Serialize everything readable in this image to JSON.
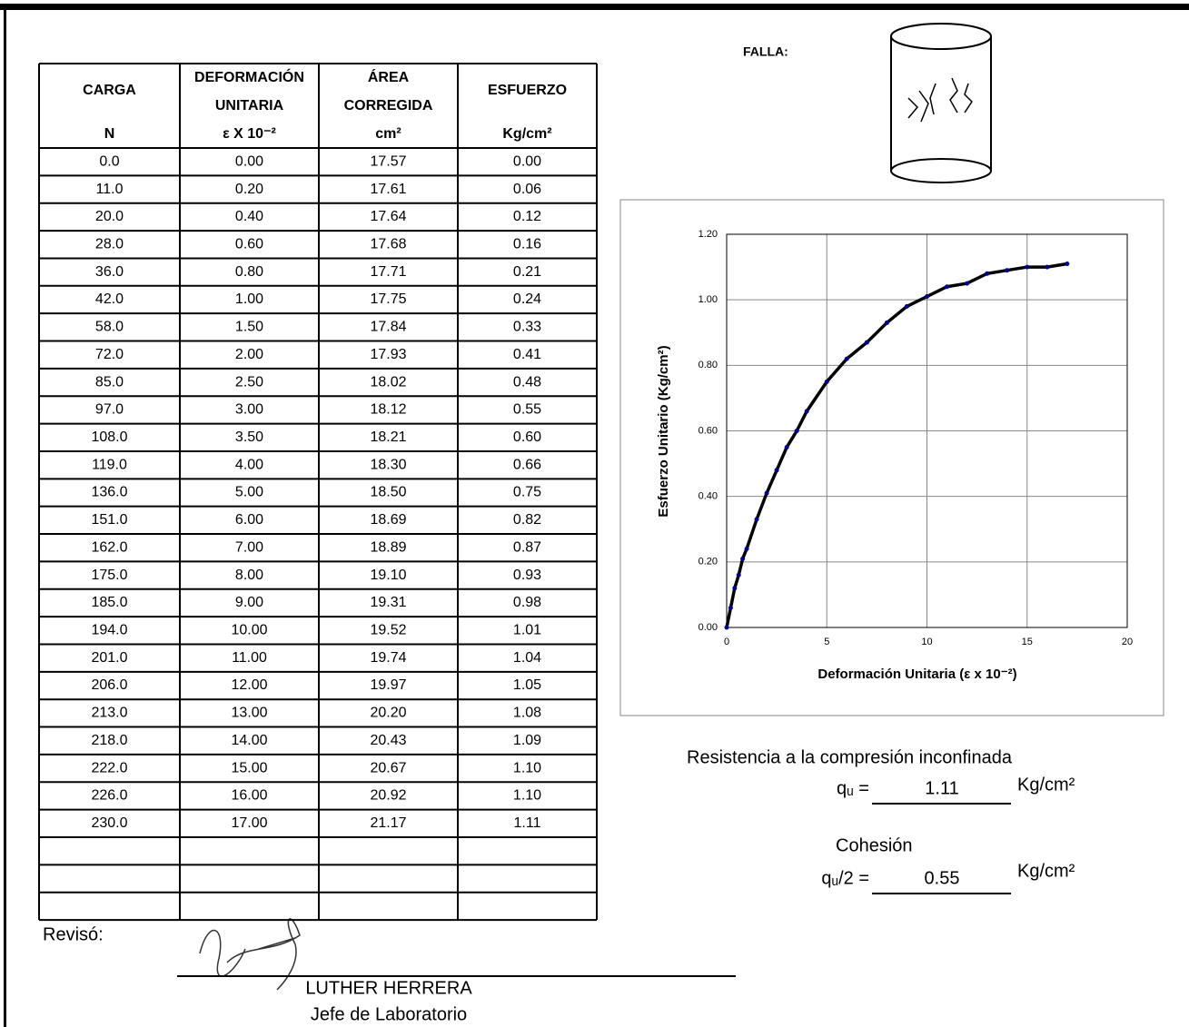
{
  "table": {
    "headers": [
      {
        "lines": [
          "CARGA"
        ],
        "unit": "N"
      },
      {
        "lines": [
          "DEFORMACIÓN",
          "UNITARIA"
        ],
        "unit": "ε X 10⁻²"
      },
      {
        "lines": [
          "ÁREA",
          "CORREGIDA"
        ],
        "unit": "cm²"
      },
      {
        "lines": [
          "ESFUERZO"
        ],
        "unit": "Kg/cm²"
      }
    ],
    "rows": [
      [
        "0.0",
        "0.00",
        "17.57",
        "0.00"
      ],
      [
        "11.0",
        "0.20",
        "17.61",
        "0.06"
      ],
      [
        "20.0",
        "0.40",
        "17.64",
        "0.12"
      ],
      [
        "28.0",
        "0.60",
        "17.68",
        "0.16"
      ],
      [
        "36.0",
        "0.80",
        "17.71",
        "0.21"
      ],
      [
        "42.0",
        "1.00",
        "17.75",
        "0.24"
      ],
      [
        "58.0",
        "1.50",
        "17.84",
        "0.33"
      ],
      [
        "72.0",
        "2.00",
        "17.93",
        "0.41"
      ],
      [
        "85.0",
        "2.50",
        "18.02",
        "0.48"
      ],
      [
        "97.0",
        "3.00",
        "18.12",
        "0.55"
      ],
      [
        "108.0",
        "3.50",
        "18.21",
        "0.60"
      ],
      [
        "119.0",
        "4.00",
        "18.30",
        "0.66"
      ],
      [
        "136.0",
        "5.00",
        "18.50",
        "0.75"
      ],
      [
        "151.0",
        "6.00",
        "18.69",
        "0.82"
      ],
      [
        "162.0",
        "7.00",
        "18.89",
        "0.87"
      ],
      [
        "175.0",
        "8.00",
        "19.10",
        "0.93"
      ],
      [
        "185.0",
        "9.00",
        "19.31",
        "0.98"
      ],
      [
        "194.0",
        "10.00",
        "19.52",
        "1.01"
      ],
      [
        "201.0",
        "11.00",
        "19.74",
        "1.04"
      ],
      [
        "206.0",
        "12.00",
        "19.97",
        "1.05"
      ],
      [
        "213.0",
        "13.00",
        "20.20",
        "1.08"
      ],
      [
        "218.0",
        "14.00",
        "20.43",
        "1.09"
      ],
      [
        "222.0",
        "15.00",
        "20.67",
        "1.10"
      ],
      [
        "226.0",
        "16.00",
        "20.92",
        "1.10"
      ],
      [
        "230.0",
        "17.00",
        "21.17",
        "1.11"
      ]
    ]
  },
  "failure": {
    "label": "FALLA:"
  },
  "chart_data": {
    "type": "line",
    "x_label": "Deformación Unitaria (ε x 10⁻²)",
    "y_label": "Esfuerzo Unitario (Kg/cm²)",
    "x": [
      0,
      0.2,
      0.4,
      0.6,
      0.8,
      1,
      1.5,
      2,
      2.5,
      3,
      3.5,
      4,
      5,
      6,
      7,
      8,
      9,
      10,
      11,
      12,
      13,
      14,
      15,
      16,
      17
    ],
    "series": [
      {
        "color": "#000000",
        "marker_color": "#00008b",
        "values": [
          0,
          0.06,
          0.12,
          0.16,
          0.21,
          0.24,
          0.33,
          0.41,
          0.48,
          0.55,
          0.6,
          0.66,
          0.75,
          0.82,
          0.87,
          0.93,
          0.98,
          1.01,
          1.04,
          1.05,
          1.08,
          1.09,
          1.1,
          1.1,
          1.11
        ]
      }
    ],
    "xlim": [
      0,
      20
    ],
    "xticks": [
      0,
      5,
      10,
      15,
      20
    ],
    "ylim": [
      0,
      1.2
    ],
    "yticks": [
      {
        "value": 0,
        "label": "0.00"
      },
      {
        "value": 0.2,
        "label": "0.20"
      },
      {
        "value": 0.4,
        "label": "0.40"
      },
      {
        "value": 0.6,
        "label": "0.60"
      },
      {
        "value": 0.8,
        "label": "0.80"
      },
      {
        "value": 1,
        "label": "1.00"
      },
      {
        "value": 1.2,
        "label": "1.20"
      }
    ],
    "grid": true
  },
  "results": {
    "title": "Resistencia a la compresión inconfinada",
    "qu_label": "qᵤ =",
    "qu_value": "1.11",
    "qu_unit": "Kg/cm²",
    "cohesion_title": "Cohesión",
    "c_label": "qᵤ/2 =",
    "c_value": "0.55",
    "c_unit": "Kg/cm²"
  },
  "signature": {
    "label": "Revisó:",
    "name": "LUTHER HERRERA",
    "role": "Jefe de Laboratorio"
  }
}
